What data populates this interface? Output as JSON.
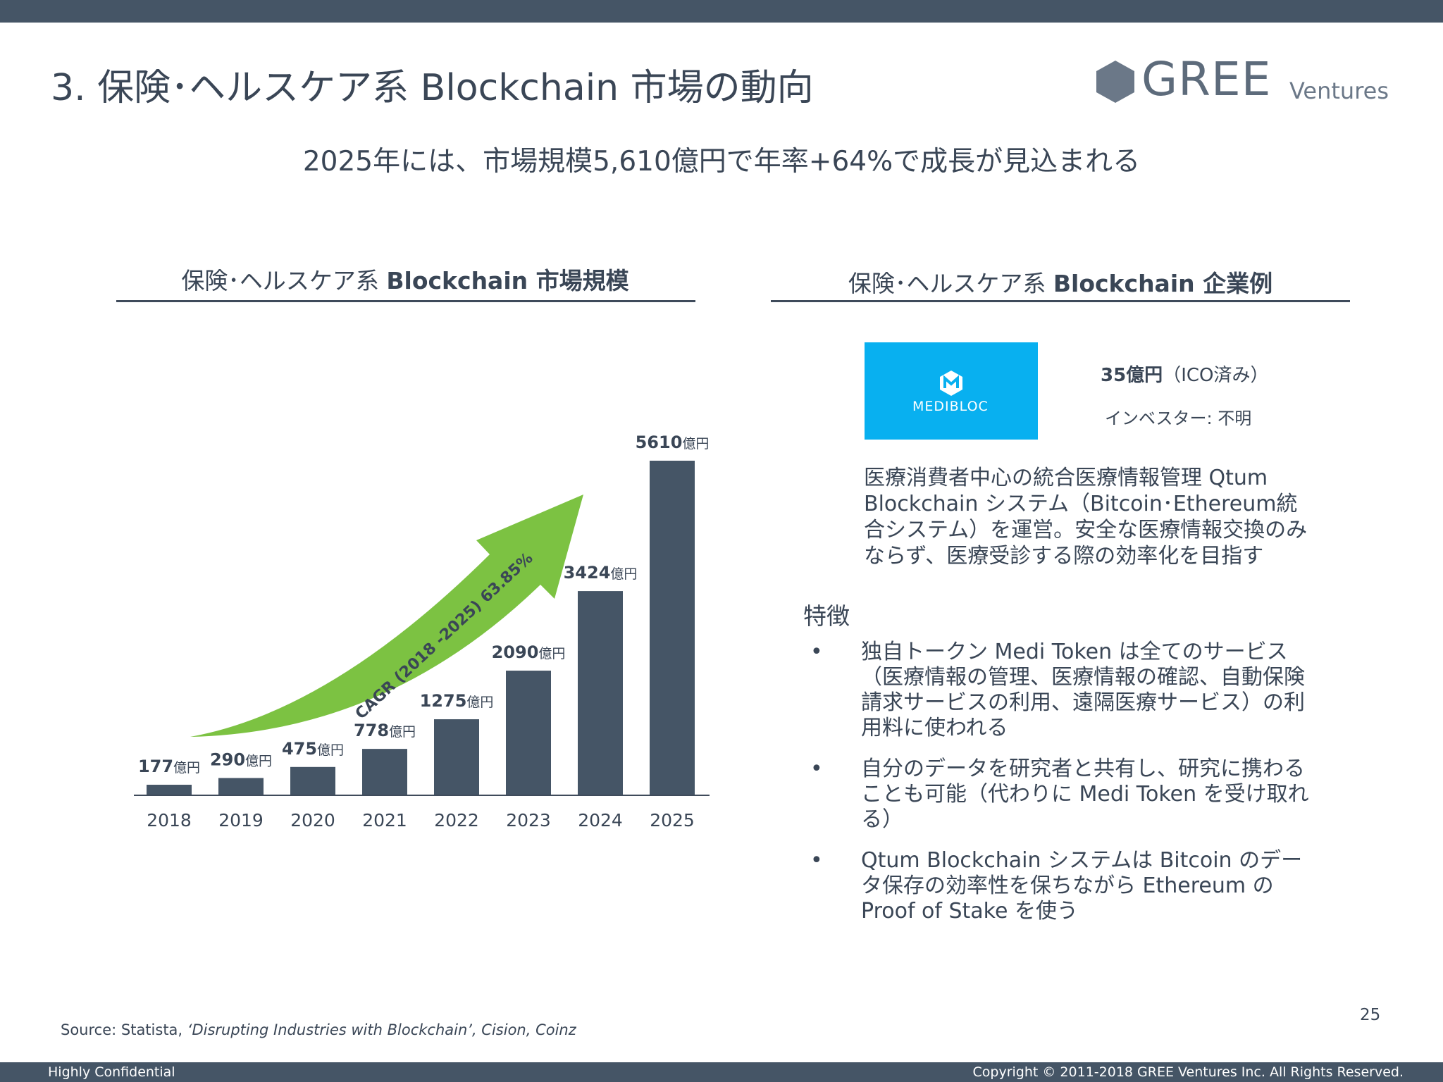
{
  "slide": {
    "title": "3. 保険･ヘルスケア系 Blockchain 市場の動向",
    "subtitle": "2025年には、市場規模5,610億円で年率+64%で成長が見込まれる",
    "page_number": "25",
    "source_prefix": "Source: Statista, ",
    "source_italic": "‘Disrupting Industries with Blockchain’, Cision, Coinz",
    "footer_left": "Highly Confidential",
    "footer_right": "Copyright © 2011-2018 GREE Ventures Inc.  All Rights Reserved."
  },
  "logo": {
    "word": "GREE",
    "sub": "Ventures",
    "icon": "hexagon-logo-icon",
    "color": "#5d6b7b"
  },
  "left_section": {
    "head_prefix": "保険･ヘルスケア系 ",
    "head_bold": "Blockchain 市場規模"
  },
  "right_section": {
    "head_prefix": "保険･ヘルスケア系 ",
    "head_bold": "Blockchain 企業例"
  },
  "company": {
    "logo_text": "MEDIBLOC",
    "logo_icon": "medibloc-m-icon",
    "logo_bg": "#08b0f0",
    "amount_bold": "35億円",
    "amount_note": "（ICO済み）",
    "investor": "インベスター: 不明",
    "description": "医療消費者中心の統合医療情報管理 Qtum Blockchain システム（Bitcoin･Ethereum統合システム）を運営。安全な医療情報交換のみならず、医療受診する際の効率化を目指す",
    "features_head": "特徴",
    "features": [
      "独自トークン Medi Token は全てのサービス（医療情報の管理、医療情報の確認、自動保険請求サービスの利用、遠隔医療サービス）の利用料に使われる",
      "自分のデータを研究者と共有し、研究に携わることも可能（代わりに Medi Token を受け取れる）",
      "Qtum Blockchain システムは Bitcoin のデータ保存の効率性を保ちながら Ethereum の Proof of Stake を使う"
    ],
    "bullet": "•"
  },
  "chart_data": {
    "type": "bar",
    "categories": [
      "2018",
      "2019",
      "2020",
      "2021",
      "2022",
      "2023",
      "2024",
      "2025"
    ],
    "values": [
      177,
      290,
      475,
      778,
      1275,
      2090,
      3424,
      5610
    ],
    "unit": "億円",
    "ylim": [
      0,
      5610
    ],
    "grid": false,
    "bar_color": "#455566",
    "annotation": {
      "text": "CAGR (2018 -2025) 63.85%",
      "color": "#7cc242"
    }
  }
}
